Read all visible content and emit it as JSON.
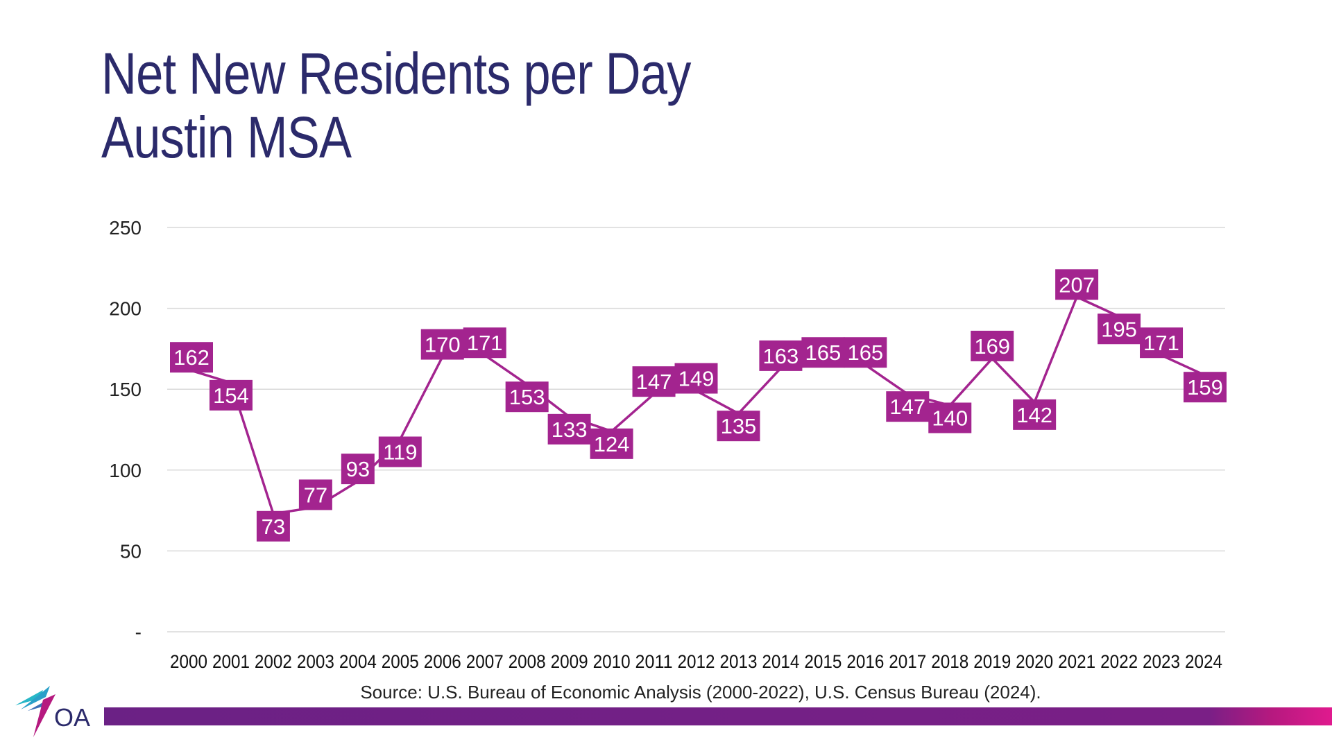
{
  "title": {
    "line1": "Net New Residents per Day",
    "line2": "Austin MSA"
  },
  "source": "Source: U.S. Bureau of Economic Analysis (2000-2022), U.S. Census Bureau (2024).",
  "logo": {
    "text": "OA",
    "icon": "oa-logo-icon"
  },
  "colors": {
    "title": "#2b2a6b",
    "series": "#a3248f",
    "footer": "#6b2185",
    "grid": "#d9d9d9"
  },
  "chart_data": {
    "type": "line",
    "title": "Net New Residents per Day Austin MSA",
    "xlabel": "",
    "ylabel": "",
    "categories": [
      "2000",
      "2001",
      "2002",
      "2003",
      "2004",
      "2005",
      "2006",
      "2007",
      "2008",
      "2009",
      "2010",
      "2011",
      "2012",
      "2013",
      "2014",
      "2015",
      "2016",
      "2017",
      "2018",
      "2019",
      "2020",
      "2021",
      "2022",
      "2023",
      "2024"
    ],
    "series": [
      {
        "name": "Net New Residents per Day",
        "values": [
          162,
          154,
          73,
          77,
          93,
          119,
          170,
          171,
          153,
          133,
          124,
          147,
          149,
          135,
          163,
          165,
          165,
          147,
          140,
          169,
          142,
          207,
          195,
          171,
          159
        ]
      }
    ],
    "ylim": [
      0,
      250
    ],
    "yticks": [
      0,
      50,
      100,
      150,
      200,
      250
    ],
    "ytick_labels": [
      "-",
      "50",
      "100",
      "150",
      "200",
      "250"
    ],
    "label_side": [
      "above",
      "below",
      "below",
      "above",
      "above",
      "below",
      "above",
      "above",
      "below",
      "below",
      "below",
      "above",
      "above",
      "below",
      "above",
      "above",
      "above",
      "below",
      "below",
      "above",
      "below",
      "above",
      "below",
      "above",
      "below"
    ],
    "grid": true,
    "legend": "none"
  }
}
